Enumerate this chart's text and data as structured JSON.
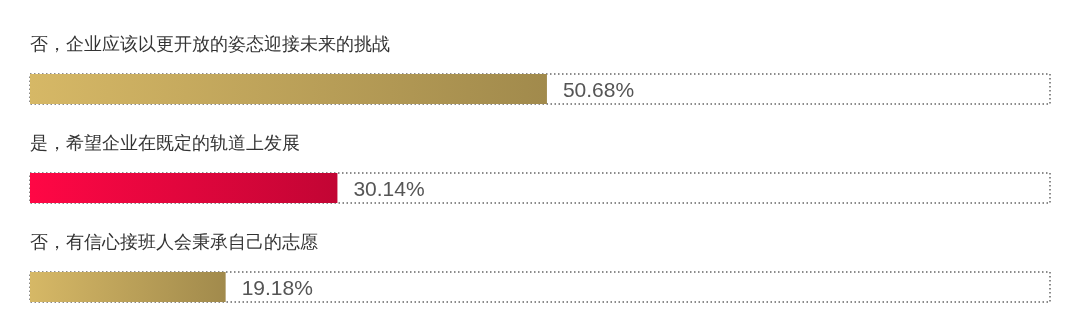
{
  "chart_data": {
    "type": "bar",
    "orientation": "horizontal",
    "categories": [
      "否，企业应该以更开放的姿态迎接未来的挑战",
      "是，希望企业在既定的轨道上发展",
      "否，有信心接班人会秉承自己的志愿"
    ],
    "values": [
      50.68,
      30.14,
      19.18
    ],
    "colors": [
      "#b39a55",
      "#d8063a",
      "#b39a55"
    ],
    "value_labels": [
      "50.68%",
      "30.14%",
      "19.18%"
    ],
    "xlim": [
      0,
      100
    ]
  }
}
